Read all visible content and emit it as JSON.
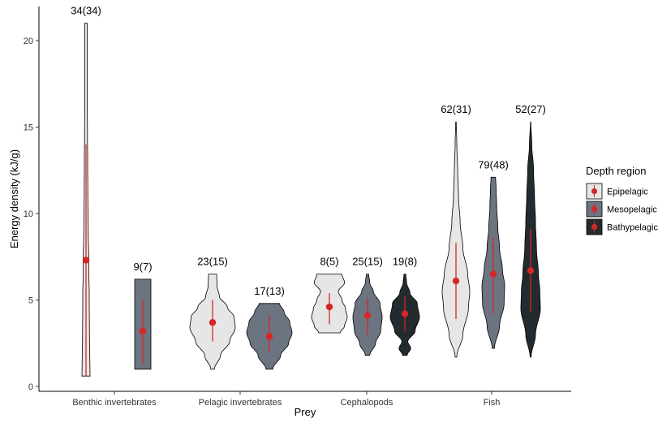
{
  "chart_data": {
    "type": "violin",
    "xlabel": "Prey",
    "ylabel": "Energy density (kJ/g)",
    "ylim": [
      0,
      21.5
    ],
    "yticks": [
      0,
      5,
      10,
      15,
      20
    ],
    "categories": [
      "Benthic invertebrates",
      "Pelagic invertebrates",
      "Cephalopods",
      "Fish"
    ],
    "legend": {
      "title": "Depth region",
      "position": "right",
      "entries": [
        {
          "name": "Epipelagic",
          "color": "#e6e6e6"
        },
        {
          "name": "Mesopelagic",
          "color": "#6b7480"
        },
        {
          "name": "Bathypelagic",
          "color": "#232b2f"
        }
      ]
    },
    "grid": false,
    "point_color": "#d62728",
    "violins": [
      {
        "category": "Benthic invertebrates",
        "region": "Epipelagic",
        "label": "34(34)",
        "min": 0.6,
        "max": 21.0,
        "mean": 7.3,
        "sd_low": 0.6,
        "sd_high": 14.0,
        "profile": [
          [
            0.6,
            1.0
          ],
          [
            1.5,
            0.95
          ],
          [
            3,
            0.85
          ],
          [
            5,
            0.8
          ],
          [
            7,
            0.7
          ],
          [
            9,
            0.55
          ],
          [
            11,
            0.45
          ],
          [
            13,
            0.4
          ],
          [
            15,
            0.35
          ],
          [
            17,
            0.3
          ],
          [
            19,
            0.3
          ],
          [
            21.0,
            0.3
          ]
        ]
      },
      {
        "category": "Benthic invertebrates",
        "region": "Mesopelagic",
        "label": "9(7)",
        "min": 1.0,
        "max": 6.2,
        "mean": 3.2,
        "sd_low": 1.3,
        "sd_high": 5.0,
        "profile": [
          [
            1.0,
            1.0
          ],
          [
            2,
            1.0
          ],
          [
            3,
            1.0
          ],
          [
            4,
            1.0
          ],
          [
            5,
            1.0
          ],
          [
            6.2,
            1.0
          ]
        ]
      },
      {
        "category": "Pelagic invertebrates",
        "region": "Epipelagic",
        "label": "23(15)",
        "min": 1.0,
        "max": 6.5,
        "mean": 3.7,
        "sd_low": 2.6,
        "sd_high": 5.0,
        "profile": [
          [
            1.0,
            0.08
          ],
          [
            1.8,
            0.35
          ],
          [
            2.6,
            0.75
          ],
          [
            3.4,
            1.0
          ],
          [
            4.0,
            0.95
          ],
          [
            4.6,
            0.65
          ],
          [
            5.2,
            0.3
          ],
          [
            5.8,
            0.2
          ],
          [
            6.5,
            0.18
          ]
        ]
      },
      {
        "category": "Pelagic invertebrates",
        "region": "Mesopelagic",
        "label": "17(13)",
        "min": 1.0,
        "max": 4.8,
        "mean": 2.9,
        "sd_low": 2.0,
        "sd_high": 4.1,
        "profile": [
          [
            1.0,
            0.15
          ],
          [
            1.8,
            0.5
          ],
          [
            2.5,
            0.85
          ],
          [
            3.1,
            1.0
          ],
          [
            3.7,
            0.9
          ],
          [
            4.3,
            0.65
          ],
          [
            4.8,
            0.45
          ]
        ]
      },
      {
        "category": "Cephalopods",
        "region": "Epipelagic",
        "label": "8(5)",
        "min": 3.1,
        "max": 6.5,
        "mean": 4.6,
        "sd_low": 3.6,
        "sd_high": 5.4,
        "profile": [
          [
            3.1,
            0.6
          ],
          [
            3.5,
            0.85
          ],
          [
            4.0,
            1.0
          ],
          [
            4.5,
            0.9
          ],
          [
            5.0,
            0.7
          ],
          [
            5.5,
            0.5
          ],
          [
            6.0,
            0.85
          ],
          [
            6.5,
            0.7
          ]
        ]
      },
      {
        "category": "Cephalopods",
        "region": "Mesopelagic",
        "label": "25(15)",
        "min": 1.8,
        "max": 6.5,
        "mean": 4.1,
        "sd_low": 3.0,
        "sd_high": 5.1,
        "profile": [
          [
            1.8,
            0.15
          ],
          [
            2.5,
            0.55
          ],
          [
            3.2,
            0.9
          ],
          [
            4.0,
            1.0
          ],
          [
            4.8,
            0.85
          ],
          [
            5.5,
            0.4
          ],
          [
            6.0,
            0.15
          ],
          [
            6.5,
            0.08
          ]
        ]
      },
      {
        "category": "Cephalopods",
        "region": "Bathypelagic",
        "label": "19(8)",
        "min": 1.8,
        "max": 6.5,
        "mean": 4.2,
        "sd_low": 3.2,
        "sd_high": 5.2,
        "profile": [
          [
            1.8,
            0.15
          ],
          [
            2.2,
            0.4
          ],
          [
            2.6,
            0.2
          ],
          [
            3.2,
            0.7
          ],
          [
            4.0,
            1.0
          ],
          [
            4.8,
            0.85
          ],
          [
            5.4,
            0.35
          ],
          [
            6.0,
            0.12
          ],
          [
            6.5,
            0.06
          ]
        ]
      },
      {
        "category": "Fish",
        "region": "Epipelagic",
        "label": "62(31)",
        "min": 1.7,
        "max": 15.3,
        "mean": 6.1,
        "sd_low": 3.9,
        "sd_high": 8.3,
        "profile": [
          [
            1.7,
            0.05
          ],
          [
            3.0,
            0.5
          ],
          [
            4.5,
            0.9
          ],
          [
            5.5,
            1.0
          ],
          [
            6.5,
            0.85
          ],
          [
            8,
            0.5
          ],
          [
            9.5,
            0.3
          ],
          [
            11,
            0.18
          ],
          [
            12.5,
            0.12
          ],
          [
            14,
            0.06
          ],
          [
            15.3,
            0.02
          ]
        ]
      },
      {
        "category": "Fish",
        "region": "Mesopelagic",
        "label": "79(48)",
        "min": 2.2,
        "max": 12.1,
        "mean": 6.5,
        "sd_low": 4.2,
        "sd_high": 8.6,
        "profile": [
          [
            2.2,
            0.1
          ],
          [
            3.5,
            0.55
          ],
          [
            4.8,
            0.95
          ],
          [
            5.8,
            1.0
          ],
          [
            6.8,
            0.8
          ],
          [
            8,
            0.55
          ],
          [
            9.2,
            0.4
          ],
          [
            10.4,
            0.3
          ],
          [
            11.4,
            0.25
          ],
          [
            12.1,
            0.2
          ]
        ]
      },
      {
        "category": "Fish",
        "region": "Bathypelagic",
        "label": "52(27)",
        "min": 1.7,
        "max": 15.3,
        "mean": 6.7,
        "sd_low": 4.3,
        "sd_high": 9.1,
        "profile": [
          [
            1.7,
            0.05
          ],
          [
            3.0,
            0.5
          ],
          [
            4.5,
            1.0
          ],
          [
            5.5,
            0.95
          ],
          [
            6.5,
            0.8
          ],
          [
            8,
            0.6
          ],
          [
            9.5,
            0.5
          ],
          [
            11,
            0.4
          ],
          [
            12.5,
            0.3
          ],
          [
            14,
            0.12
          ],
          [
            15.3,
            0.02
          ]
        ]
      }
    ]
  }
}
